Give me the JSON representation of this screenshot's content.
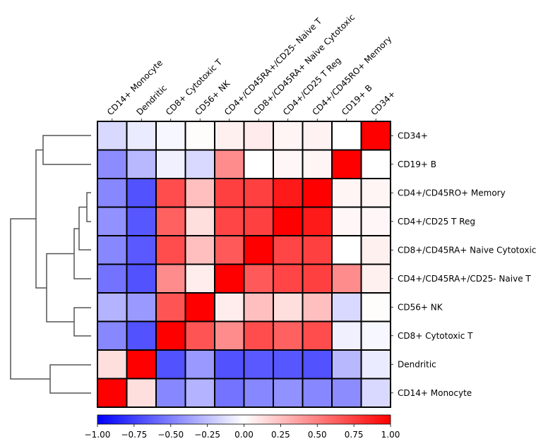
{
  "chart_data": {
    "type": "heatmap",
    "colormap": "bwr",
    "columns": [
      "CD14+ Monocyte",
      "Dendritic",
      "CD8+ Cytotoxic T",
      "CD56+ NK",
      "CD4+/CD45RA+/CD25- Naive T",
      "CD8+/CD45RA+ Naive Cytotoxic",
      "CD4+/CD25 T Reg",
      "CD4+/CD45RO+ Memory",
      "CD19+ B",
      "CD34+"
    ],
    "rows": [
      "CD34+",
      "CD19+ B",
      "CD4+/CD45RO+ Memory",
      "CD4+/CD25 T Reg",
      "CD8+/CD45RA+ Naive Cytotoxic",
      "CD4+/CD45RA+/CD25- Naive T",
      "CD56+ NK",
      "CD8+ Cytotoxic T",
      "Dendritic",
      "CD14+ Monocyte"
    ],
    "values": [
      [
        -0.15,
        -0.08,
        -0.03,
        0.01,
        0.06,
        0.08,
        0.04,
        0.05,
        0.0,
        1.0
      ],
      [
        -0.45,
        -0.28,
        -0.06,
        -0.15,
        0.45,
        0.0,
        0.03,
        0.04,
        1.0,
        0.0
      ],
      [
        -0.47,
        -0.68,
        0.7,
        0.25,
        0.75,
        0.75,
        0.9,
        1.0,
        0.04,
        0.04
      ],
      [
        -0.43,
        -0.66,
        0.62,
        0.13,
        0.73,
        0.75,
        1.0,
        0.9,
        0.03,
        0.03
      ],
      [
        -0.47,
        -0.65,
        0.7,
        0.25,
        0.65,
        1.0,
        0.73,
        0.75,
        0.0,
        0.06
      ],
      [
        -0.55,
        -0.68,
        0.45,
        0.07,
        1.0,
        0.65,
        0.73,
        0.75,
        0.45,
        0.06
      ],
      [
        -0.3,
        -0.4,
        0.67,
        1.0,
        0.07,
        0.25,
        0.13,
        0.25,
        -0.15,
        0.01
      ],
      [
        -0.47,
        -0.68,
        1.0,
        0.67,
        0.45,
        0.7,
        0.62,
        0.7,
        -0.06,
        -0.03
      ],
      [
        0.13,
        1.0,
        -0.68,
        -0.4,
        -0.68,
        -0.65,
        -0.66,
        -0.68,
        -0.28,
        -0.08
      ],
      [
        1.0,
        0.13,
        -0.47,
        -0.3,
        -0.55,
        -0.47,
        -0.43,
        -0.47,
        -0.45,
        -0.15
      ]
    ],
    "vmin": -1.0,
    "vmax": 1.0,
    "colorbar": {
      "location": "bottom",
      "tick_labels": [
        "−1.00",
        "−0.75",
        "−0.50",
        "−0.25",
        "0.00",
        "0.25",
        "0.50",
        "0.75",
        "1.00"
      ],
      "ticks": [
        -1.0,
        -0.75,
        -0.5,
        -0.25,
        0.0,
        0.25,
        0.5,
        0.75,
        1.0
      ]
    },
    "row_dendrogram": true
  }
}
